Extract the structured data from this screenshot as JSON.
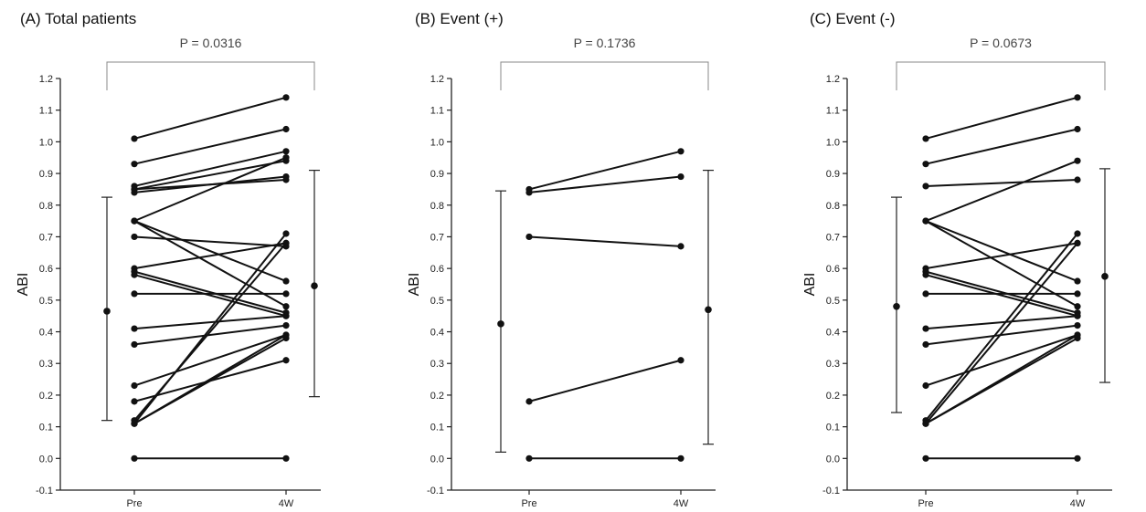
{
  "chart_data": [
    {
      "type": "line",
      "title": "(A) Total patients",
      "pvalue": "P = 0.0316",
      "ylabel": "ABI",
      "categories": [
        "Pre",
        "4W"
      ],
      "ylim": [
        -0.1,
        1.2
      ],
      "yticks": [
        "-0.1",
        "0.0",
        "0.1",
        "0.2",
        "0.3",
        "0.4",
        "0.5",
        "0.6",
        "0.7",
        "0.8",
        "0.9",
        "1.0",
        "1.1",
        "1.2"
      ],
      "grid": false,
      "pairs": [
        [
          1.01,
          1.14
        ],
        [
          0.93,
          1.04
        ],
        [
          0.86,
          0.97
        ],
        [
          0.85,
          0.94
        ],
        [
          0.85,
          0.88
        ],
        [
          0.84,
          0.89
        ],
        [
          0.75,
          0.56
        ],
        [
          0.75,
          0.48
        ],
        [
          0.75,
          0.95
        ],
        [
          0.7,
          0.67
        ],
        [
          0.6,
          0.68
        ],
        [
          0.59,
          0.46
        ],
        [
          0.58,
          0.45
        ],
        [
          0.52,
          0.52
        ],
        [
          0.41,
          0.45
        ],
        [
          0.36,
          0.42
        ],
        [
          0.23,
          0.39
        ],
        [
          0.18,
          0.31
        ],
        [
          0.12,
          0.68
        ],
        [
          0.11,
          0.71
        ],
        [
          0.11,
          0.39
        ],
        [
          0.11,
          0.38
        ],
        [
          0.0,
          0.0
        ]
      ],
      "summary": [
        {
          "category": "Pre",
          "mean": 0.465,
          "lower": 0.12,
          "upper": 0.825
        },
        {
          "category": "4W",
          "mean": 0.545,
          "lower": 0.195,
          "upper": 0.91
        }
      ]
    },
    {
      "type": "line",
      "title": "(B) Event (+)",
      "pvalue": "P = 0.1736",
      "ylabel": "ABI",
      "categories": [
        "Pre",
        "4W"
      ],
      "ylim": [
        -0.1,
        1.2
      ],
      "yticks": [
        "-0.1",
        "0.0",
        "0.1",
        "0.2",
        "0.3",
        "0.4",
        "0.5",
        "0.6",
        "0.7",
        "0.8",
        "0.9",
        "1.0",
        "1.1",
        "1.2"
      ],
      "grid": false,
      "pairs": [
        [
          0.85,
          0.97
        ],
        [
          0.84,
          0.89
        ],
        [
          0.7,
          0.67
        ],
        [
          0.18,
          0.31
        ],
        [
          0.0,
          0.0
        ]
      ],
      "summary": [
        {
          "category": "Pre",
          "mean": 0.425,
          "lower": 0.02,
          "upper": 0.845
        },
        {
          "category": "4W",
          "mean": 0.47,
          "lower": 0.045,
          "upper": 0.91
        }
      ]
    },
    {
      "type": "line",
      "title": "(C) Event (-)",
      "pvalue": "P = 0.0673",
      "ylabel": "ABI",
      "categories": [
        "Pre",
        "4W"
      ],
      "ylim": [
        -0.1,
        1.2
      ],
      "yticks": [
        "-0.1",
        "0.0",
        "0.1",
        "0.2",
        "0.3",
        "0.4",
        "0.5",
        "0.6",
        "0.7",
        "0.8",
        "0.9",
        "1.0",
        "1.1",
        "1.2"
      ],
      "grid": false,
      "pairs": [
        [
          1.01,
          1.14
        ],
        [
          0.93,
          1.04
        ],
        [
          0.86,
          0.88
        ],
        [
          0.75,
          0.94
        ],
        [
          0.75,
          0.56
        ],
        [
          0.75,
          0.48
        ],
        [
          0.6,
          0.68
        ],
        [
          0.59,
          0.46
        ],
        [
          0.58,
          0.45
        ],
        [
          0.52,
          0.52
        ],
        [
          0.41,
          0.45
        ],
        [
          0.36,
          0.42
        ],
        [
          0.23,
          0.39
        ],
        [
          0.12,
          0.71
        ],
        [
          0.11,
          0.68
        ],
        [
          0.11,
          0.39
        ],
        [
          0.11,
          0.38
        ],
        [
          0.0,
          0.0
        ]
      ],
      "summary": [
        {
          "category": "Pre",
          "mean": 0.48,
          "lower": 0.145,
          "upper": 0.825
        },
        {
          "category": "4W",
          "mean": 0.575,
          "lower": 0.24,
          "upper": 0.915
        }
      ]
    }
  ]
}
